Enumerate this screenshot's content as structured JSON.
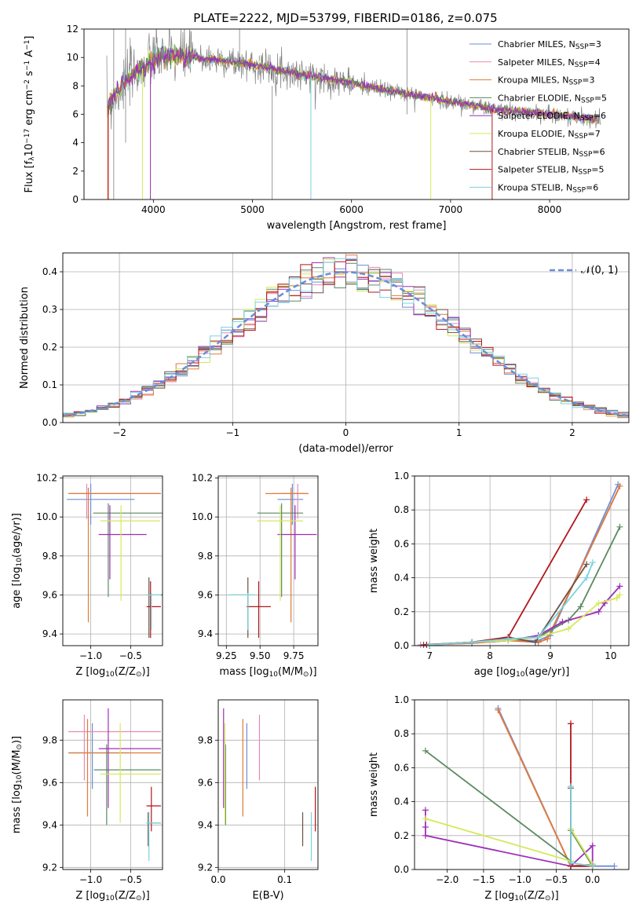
{
  "figure": {
    "title": "PLATE=2222, MJD=53799, FIBERID=0186, z=0.075"
  },
  "legend": [
    {
      "label": "Chabrier MILES, N",
      "sub": "SSP",
      "tail": "=3",
      "color": "#6a8ed8"
    },
    {
      "label": "Salpeter MILES, N",
      "sub": "SSP",
      "tail": "=4",
      "color": "#e889b5"
    },
    {
      "label": "Kroupa MILES, N",
      "sub": "SSP",
      "tail": "=3",
      "color": "#e07b39"
    },
    {
      "label": "Chabrier ELODIE, N",
      "sub": "SSP",
      "tail": "=5",
      "color": "#5a8a5f"
    },
    {
      "label": "Salpeter ELODIE, N",
      "sub": "SSP",
      "tail": "=6",
      "color": "#9d2eb8"
    },
    {
      "label": "Kroupa ELODIE, N",
      "sub": "SSP",
      "tail": "=7",
      "color": "#d6e85a"
    },
    {
      "label": "Chabrier STELIB, N",
      "sub": "SSP",
      "tail": "=6",
      "color": "#6b5045"
    },
    {
      "label": "Salpeter STELIB, N",
      "sub": "SSP",
      "tail": "=5",
      "color": "#b2161b"
    },
    {
      "label": "Kroupa STELIB, N",
      "sub": "SSP",
      "tail": "=6",
      "color": "#7ad3de"
    }
  ],
  "chart_data": [
    {
      "id": "spectrum",
      "type": "line",
      "title": "PLATE=2222, MJD=53799, FIBERID=0186, z=0.075",
      "xlabel": "wavelength [Angstrom, rest frame]",
      "ylabel_parts": [
        "Flux [f",
        "λ",
        "10",
        "−17",
        " erg cm",
        "−2",
        " s",
        "−1",
        " A",
        "−1",
        "]"
      ],
      "xlim": [
        3300,
        8800
      ],
      "ylim": [
        0,
        12
      ],
      "xticks": [
        4000,
        5000,
        6000,
        7000,
        8000
      ],
      "yticks": [
        0,
        2,
        4,
        6,
        8,
        10,
        12
      ],
      "data_color": "#808080",
      "continuum": {
        "x": [
          3530,
          3600,
          3700,
          3800,
          3900,
          4000,
          4100,
          4300,
          4500,
          4700,
          5000,
          5500,
          6000,
          6500,
          7000,
          7500,
          8000,
          8500,
          8520
        ],
        "y": [
          6.4,
          7.2,
          8.2,
          8.8,
          9.3,
          9.8,
          10.2,
          10.1,
          9.9,
          9.8,
          9.5,
          8.8,
          8.2,
          7.5,
          6.9,
          6.3,
          6.0,
          5.6,
          5.4
        ]
      }
    },
    {
      "id": "residual_hist",
      "type": "line",
      "xlabel": "(data-model)/error",
      "ylabel": "Normed distribution",
      "xlim": [
        -2.5,
        2.5
      ],
      "ylim": [
        0,
        0.45
      ],
      "xticks": [
        -2,
        -1,
        0,
        1,
        2
      ],
      "yticks": [
        0.0,
        0.1,
        0.2,
        0.3,
        0.4
      ],
      "legend_label": "𝒩(0, 1)",
      "gauss_color": "#6a8ed8"
    },
    {
      "id": "age_vs_Z",
      "type": "scatter",
      "xlabel_parts": [
        "Z [log",
        "10",
        "(Z/Z",
        "⊙",
        ")]"
      ],
      "ylabel_parts": [
        "age  [log",
        "10",
        "(age/yr)]"
      ],
      "xlim": [
        -1.35,
        -0.1
      ],
      "ylim": [
        9.34,
        10.21
      ],
      "xticks": [
        -1.0,
        -0.5
      ],
      "yticks": [
        9.4,
        9.6,
        9.8,
        10.0,
        10.2
      ],
      "points": [
        {
          "s": 0,
          "x": -1.0,
          "y": 10.09,
          "xe": [
            -1.3,
            -0.45
          ],
          "ye": [
            9.96,
            10.17
          ]
        },
        {
          "s": 1,
          "x": -1.05,
          "y": 10.12,
          "xe": [
            -1.28,
            -0.12
          ],
          "ye": [
            9.99,
            10.17
          ]
        },
        {
          "s": 2,
          "x": -1.03,
          "y": 10.12,
          "xe": [
            -1.28,
            -0.12
          ],
          "ye": [
            9.46,
            10.15
          ]
        },
        {
          "s": 3,
          "x": -0.78,
          "y": 10.02,
          "xe": [
            -0.97,
            -0.1
          ],
          "ye": [
            9.59,
            10.07
          ]
        },
        {
          "s": 4,
          "x": -0.76,
          "y": 9.91,
          "xe": [
            -0.9,
            -0.3
          ],
          "ye": [
            9.68,
            10.06
          ]
        },
        {
          "s": 5,
          "x": -0.62,
          "y": 9.98,
          "xe": [
            -0.88,
            -0.13
          ],
          "ye": [
            9.57,
            10.06
          ]
        },
        {
          "s": 6,
          "x": -0.27,
          "y": 9.6,
          "xe": [
            -0.3,
            -0.1
          ],
          "ye": [
            9.38,
            9.69
          ]
        },
        {
          "s": 7,
          "x": -0.25,
          "y": 9.54,
          "xe": [
            -0.3,
            -0.12
          ],
          "ye": [
            9.38,
            9.67
          ]
        },
        {
          "s": 8,
          "x": -0.24,
          "y": 9.6,
          "xe": [
            -0.3,
            -0.12
          ],
          "ye": [
            9.42,
            9.61
          ]
        }
      ]
    },
    {
      "id": "age_vs_mass",
      "type": "scatter",
      "xlabel_parts": [
        "mass [log",
        "10",
        "(M/M",
        "⊙",
        ")]"
      ],
      "ylabel": "",
      "xlim": [
        9.19,
        9.93
      ],
      "ylim": [
        9.34,
        10.21
      ],
      "xticks": [
        9.25,
        9.5,
        9.75
      ],
      "yticks": [
        9.4,
        9.6,
        9.8,
        10.0,
        10.2
      ],
      "points": [
        {
          "s": 0,
          "x": 9.74,
          "y": 10.09,
          "xe": [
            9.63,
            9.82
          ],
          "ye": [
            9.96,
            10.17
          ]
        },
        {
          "s": 1,
          "x": 9.78,
          "y": 10.12,
          "xe": [
            9.66,
            9.85
          ],
          "ye": [
            9.99,
            10.17
          ]
        },
        {
          "s": 2,
          "x": 9.73,
          "y": 10.12,
          "xe": [
            9.54,
            9.86
          ],
          "ye": [
            9.46,
            10.15
          ]
        },
        {
          "s": 3,
          "x": 9.66,
          "y": 10.02,
          "xe": [
            9.48,
            9.82
          ],
          "ye": [
            9.59,
            10.07
          ]
        },
        {
          "s": 4,
          "x": 9.76,
          "y": 9.91,
          "xe": [
            9.63,
            9.92
          ],
          "ye": [
            9.68,
            10.06
          ]
        },
        {
          "s": 5,
          "x": 9.65,
          "y": 9.98,
          "xe": [
            9.48,
            9.82
          ],
          "ye": [
            9.57,
            10.06
          ]
        },
        {
          "s": 6,
          "x": 9.41,
          "y": 9.6,
          "xe": [
            9.28,
            9.46
          ],
          "ye": [
            9.38,
            9.69
          ]
        },
        {
          "s": 7,
          "x": 9.49,
          "y": 9.54,
          "xe": [
            9.4,
            9.58
          ],
          "ye": [
            9.38,
            9.67
          ]
        },
        {
          "s": 8,
          "x": 9.41,
          "y": 9.6,
          "xe": [
            9.26,
            9.47
          ],
          "ye": [
            9.42,
            9.61
          ]
        }
      ]
    },
    {
      "id": "weight_vs_age",
      "type": "line",
      "xlabel_parts": [
        "age  [log",
        "10",
        "(age/yr)]"
      ],
      "ylabel": "mass weight",
      "xlim": [
        6.75,
        10.3
      ],
      "ylim": [
        0,
        1.0
      ],
      "xticks": [
        7,
        8,
        9,
        10
      ],
      "yticks": [
        0.0,
        0.2,
        0.4,
        0.6,
        0.8,
        1.0
      ],
      "series": [
        {
          "s": 0,
          "x": [
            7.0,
            7.7,
            8.3,
            8.8,
            9.0,
            10.12
          ],
          "y": [
            0.005,
            0.015,
            0.03,
            0.03,
            0.06,
            0.95
          ]
        },
        {
          "s": 1,
          "x": [
            6.85,
            7.7,
            8.3,
            8.8,
            8.95,
            10.15
          ],
          "y": [
            0.005,
            0.015,
            0.03,
            0.02,
            0.04,
            0.94
          ]
        },
        {
          "s": 2,
          "x": [
            7.0,
            7.7,
            8.3,
            8.8,
            8.95,
            10.15
          ],
          "y": [
            0.005,
            0.015,
            0.03,
            0.02,
            0.04,
            0.94
          ]
        },
        {
          "s": 3,
          "x": [
            7.0,
            7.7,
            8.3,
            8.8,
            9.3,
            9.5,
            10.15
          ],
          "y": [
            0.005,
            0.02,
            0.03,
            0.05,
            0.15,
            0.23,
            0.7
          ]
        },
        {
          "s": 4,
          "x": [
            7.0,
            7.7,
            8.3,
            8.8,
            9.2,
            9.8,
            9.9,
            10.15
          ],
          "y": [
            0.005,
            0.02,
            0.03,
            0.06,
            0.14,
            0.2,
            0.25,
            0.35
          ]
        },
        {
          "s": 5,
          "x": [
            7.0,
            7.7,
            8.3,
            8.8,
            9.3,
            9.8,
            10.1,
            10.15
          ],
          "y": [
            0.005,
            0.02,
            0.03,
            0.05,
            0.1,
            0.25,
            0.28,
            0.3
          ]
        },
        {
          "s": 6,
          "x": [
            6.9,
            7.7,
            8.3,
            8.75,
            9.6
          ],
          "y": [
            0.005,
            0.02,
            0.05,
            0.02,
            0.48
          ]
        },
        {
          "s": 7,
          "x": [
            6.95,
            7.7,
            8.3,
            9.6
          ],
          "y": [
            0.005,
            0.02,
            0.05,
            0.86
          ]
        },
        {
          "s": 8,
          "x": [
            7.0,
            7.7,
            8.3,
            8.8,
            9.6,
            9.7
          ],
          "y": [
            0.005,
            0.02,
            0.04,
            0.05,
            0.4,
            0.49
          ]
        }
      ]
    },
    {
      "id": "mass_vs_Z",
      "type": "scatter",
      "xlabel_parts": [
        "Z [log",
        "10",
        "(Z/Z",
        "⊙",
        ")]"
      ],
      "ylabel_parts": [
        "mass [log",
        "10",
        "(M/M",
        "⊙",
        ")]"
      ],
      "xlim": [
        -1.35,
        -0.1
      ],
      "ylim": [
        9.19,
        9.99
      ],
      "xticks": [
        -1.0,
        -0.5
      ],
      "yticks": [
        9.2,
        9.4,
        9.6,
        9.8
      ],
      "points": [
        {
          "s": 0,
          "x": -0.98,
          "y": 9.74,
          "xe": [
            -1.28,
            -0.52
          ],
          "ye": [
            9.57,
            9.88
          ]
        },
        {
          "s": 1,
          "x": -1.08,
          "y": 9.84,
          "xe": [
            -1.28,
            -0.12
          ],
          "ye": [
            9.61,
            9.92
          ]
        },
        {
          "s": 2,
          "x": -1.04,
          "y": 9.74,
          "xe": [
            -1.28,
            -0.12
          ],
          "ye": [
            9.44,
            9.9
          ]
        },
        {
          "s": 3,
          "x": -0.8,
          "y": 9.66,
          "xe": [
            -0.96,
            -0.12
          ],
          "ye": [
            9.4,
            9.78
          ]
        },
        {
          "s": 4,
          "x": -0.78,
          "y": 9.76,
          "xe": [
            -0.9,
            -0.12
          ],
          "ye": [
            9.48,
            9.95
          ]
        },
        {
          "s": 5,
          "x": -0.63,
          "y": 9.64,
          "xe": [
            -0.88,
            -0.12
          ],
          "ye": [
            9.41,
            9.88
          ]
        },
        {
          "s": 6,
          "x": -0.28,
          "y": 9.41,
          "xe": [
            -0.3,
            -0.12
          ],
          "ye": [
            9.3,
            9.46
          ]
        },
        {
          "s": 7,
          "x": -0.24,
          "y": 9.49,
          "xe": [
            -0.3,
            -0.12
          ],
          "ye": [
            9.37,
            9.58
          ]
        },
        {
          "s": 8,
          "x": -0.27,
          "y": 9.41,
          "xe": [
            -0.3,
            -0.12
          ],
          "ye": [
            9.23,
            9.46
          ]
        }
      ]
    },
    {
      "id": "mass_vs_ebv",
      "type": "scatter",
      "xlabel": "E(B-V)",
      "ylabel": "",
      "xlim": [
        0.0,
        0.15
      ],
      "ylim": [
        9.19,
        9.99
      ],
      "xticks": [
        0.0,
        0.1
      ],
      "yticks": [
        9.2,
        9.4,
        9.6,
        9.8
      ],
      "points": [
        {
          "s": 0,
          "x": 0.043,
          "ye": [
            9.57,
            9.88
          ]
        },
        {
          "s": 1,
          "x": 0.062,
          "ye": [
            9.61,
            9.92
          ]
        },
        {
          "s": 2,
          "x": 0.037,
          "ye": [
            9.44,
            9.9
          ]
        },
        {
          "s": 3,
          "x": 0.011,
          "ye": [
            9.4,
            9.78
          ]
        },
        {
          "s": 4,
          "x": 0.008,
          "ye": [
            9.48,
            9.95
          ]
        },
        {
          "s": 5,
          "x": 0.01,
          "ye": [
            9.41,
            9.88
          ]
        },
        {
          "s": 6,
          "x": 0.127,
          "ye": [
            9.3,
            9.46
          ]
        },
        {
          "s": 7,
          "x": 0.146,
          "ye": [
            9.37,
            9.58
          ]
        },
        {
          "s": 8,
          "x": 0.14,
          "ye": [
            9.23,
            9.46
          ]
        }
      ]
    },
    {
      "id": "weight_vs_Z",
      "type": "line",
      "xlabel_parts": [
        "Z [log",
        "10",
        "(Z/Z",
        "⊙",
        ")]"
      ],
      "ylabel": "mass weight",
      "xlim": [
        -2.45,
        0.5
      ],
      "ylim": [
        0,
        1.0
      ],
      "xticks": [
        -2.0,
        -1.5,
        -1.0,
        -0.5,
        0.0
      ],
      "yticks": [
        0.0,
        0.2,
        0.4,
        0.6,
        0.8,
        1.0
      ],
      "series": [
        {
          "s": 0,
          "x": [
            -1.3,
            -0.3,
            0.0,
            0.3
          ],
          "y": [
            0.95,
            0.02,
            0.02,
            0.02
          ]
        },
        {
          "s": 1,
          "x": [
            -1.3,
            -0.3,
            0.0
          ],
          "y": [
            0.94,
            0.02,
            0.03
          ]
        },
        {
          "s": 2,
          "x": [
            -1.3,
            -0.3,
            0.0
          ],
          "y": [
            0.94,
            0.02,
            0.03
          ]
        },
        {
          "s": 3,
          "x": [
            -2.3,
            -0.3,
            -0.3,
            0.0
          ],
          "y": [
            0.7,
            0.05,
            0.23,
            0.02
          ]
        },
        {
          "s": 4,
          "x": [
            -2.3,
            -2.3,
            -2.3,
            -0.3,
            0.0,
            0.0
          ],
          "y": [
            0.35,
            0.25,
            0.2,
            0.02,
            0.14,
            0.03
          ]
        },
        {
          "s": 5,
          "x": [
            -2.3,
            -0.3,
            -0.3,
            0.0
          ],
          "y": [
            0.3,
            0.05,
            0.24,
            0.03
          ]
        },
        {
          "s": 6,
          "x": [
            -0.3,
            -0.3,
            0.0
          ],
          "y": [
            0.48,
            0.02,
            0.02
          ]
        },
        {
          "s": 7,
          "x": [
            -0.3,
            -0.3,
            0.0
          ],
          "y": [
            0.86,
            0.02,
            0.02
          ]
        },
        {
          "s": 8,
          "x": [
            -0.3,
            -0.3,
            0.0
          ],
          "y": [
            0.49,
            0.04,
            0.02
          ]
        }
      ]
    }
  ]
}
